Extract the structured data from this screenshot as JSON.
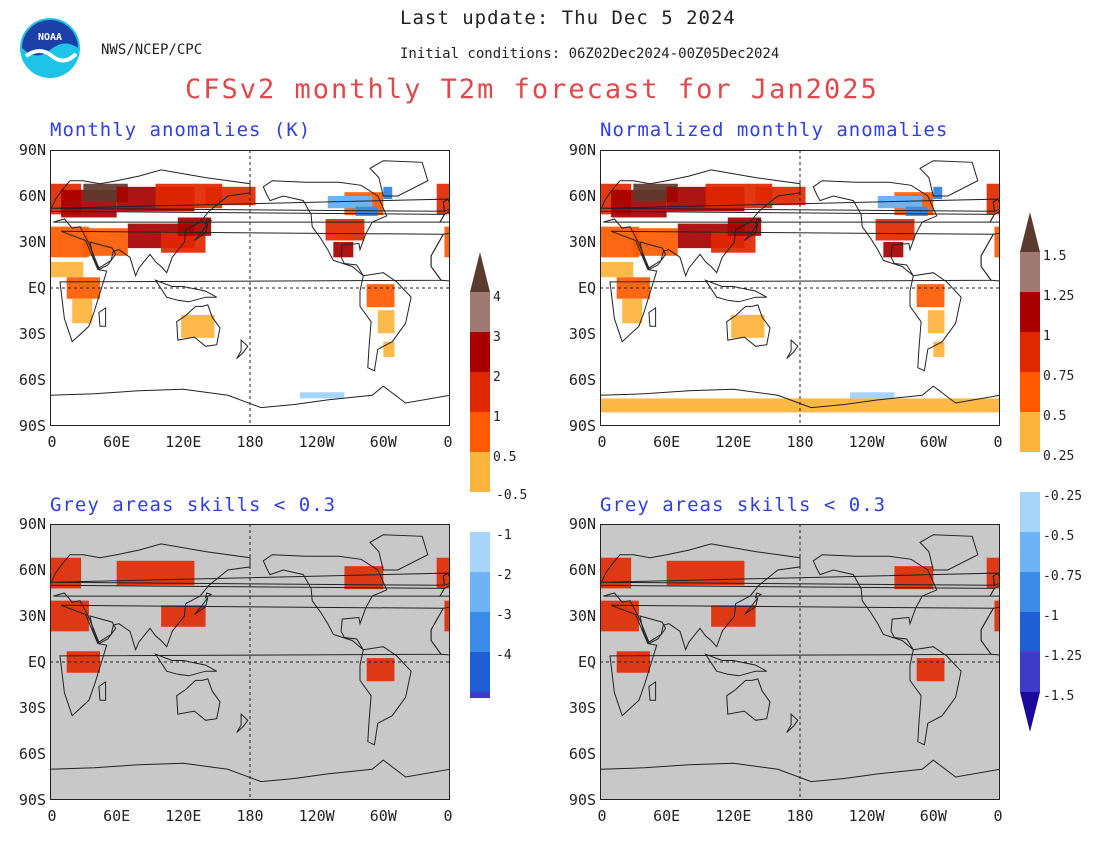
{
  "header": {
    "agency": "NWS/NCEP/CPC",
    "last_update": "Last update: Thu Dec 5 2024",
    "initial_conditions": "Initial conditions: 06Z02Dec2024-00Z05Dec2024",
    "title": "CFSv2 monthly T2m forecast for Jan2025",
    "logo_text": "NOAA"
  },
  "panels": [
    {
      "title": "Monthly anomalies (K)",
      "mask": false,
      "scale": "abs"
    },
    {
      "title": "Normalized monthly anomalies",
      "mask": false,
      "scale": "norm"
    },
    {
      "title": "Grey areas skills < 0.3",
      "mask": true,
      "scale": "abs"
    },
    {
      "title": "Grey areas skills < 0.3",
      "mask": true,
      "scale": "norm"
    }
  ],
  "axes": {
    "lat_labels": [
      "90N",
      "60N",
      "30N",
      "EQ",
      "30S",
      "60S",
      "90S"
    ],
    "lon_labels": [
      "0",
      "60E",
      "120E",
      "180",
      "120W",
      "60W",
      "0"
    ]
  },
  "colorbars": {
    "absolute": {
      "warm_labels": [
        "4",
        "3",
        "2",
        "1",
        "0.5"
      ],
      "cool_labels": [
        "-0.5",
        "-1",
        "-2",
        "-3",
        "-4"
      ]
    },
    "normalized": {
      "warm_labels": [
        "1.5",
        "1.25",
        "1",
        "0.75",
        "0.5",
        "0.25"
      ],
      "cool_labels": [
        "-0.25",
        "-0.5",
        "-0.75",
        "-1",
        "-1.25",
        "-1.5"
      ]
    },
    "colors": {
      "warm": [
        "#5b3a2e",
        "#a07a70",
        "#a80000",
        "#e02800",
        "#ff5a00",
        "#fdb43c"
      ],
      "cool": [
        "#a6d4fb",
        "#6eb4f5",
        "#3a8ce8",
        "#1f5fd6",
        "#3c3cc8",
        "#1c0a9c"
      ],
      "mask_grey": "#c8c8c8",
      "land_outline": "#222222"
    }
  }
}
